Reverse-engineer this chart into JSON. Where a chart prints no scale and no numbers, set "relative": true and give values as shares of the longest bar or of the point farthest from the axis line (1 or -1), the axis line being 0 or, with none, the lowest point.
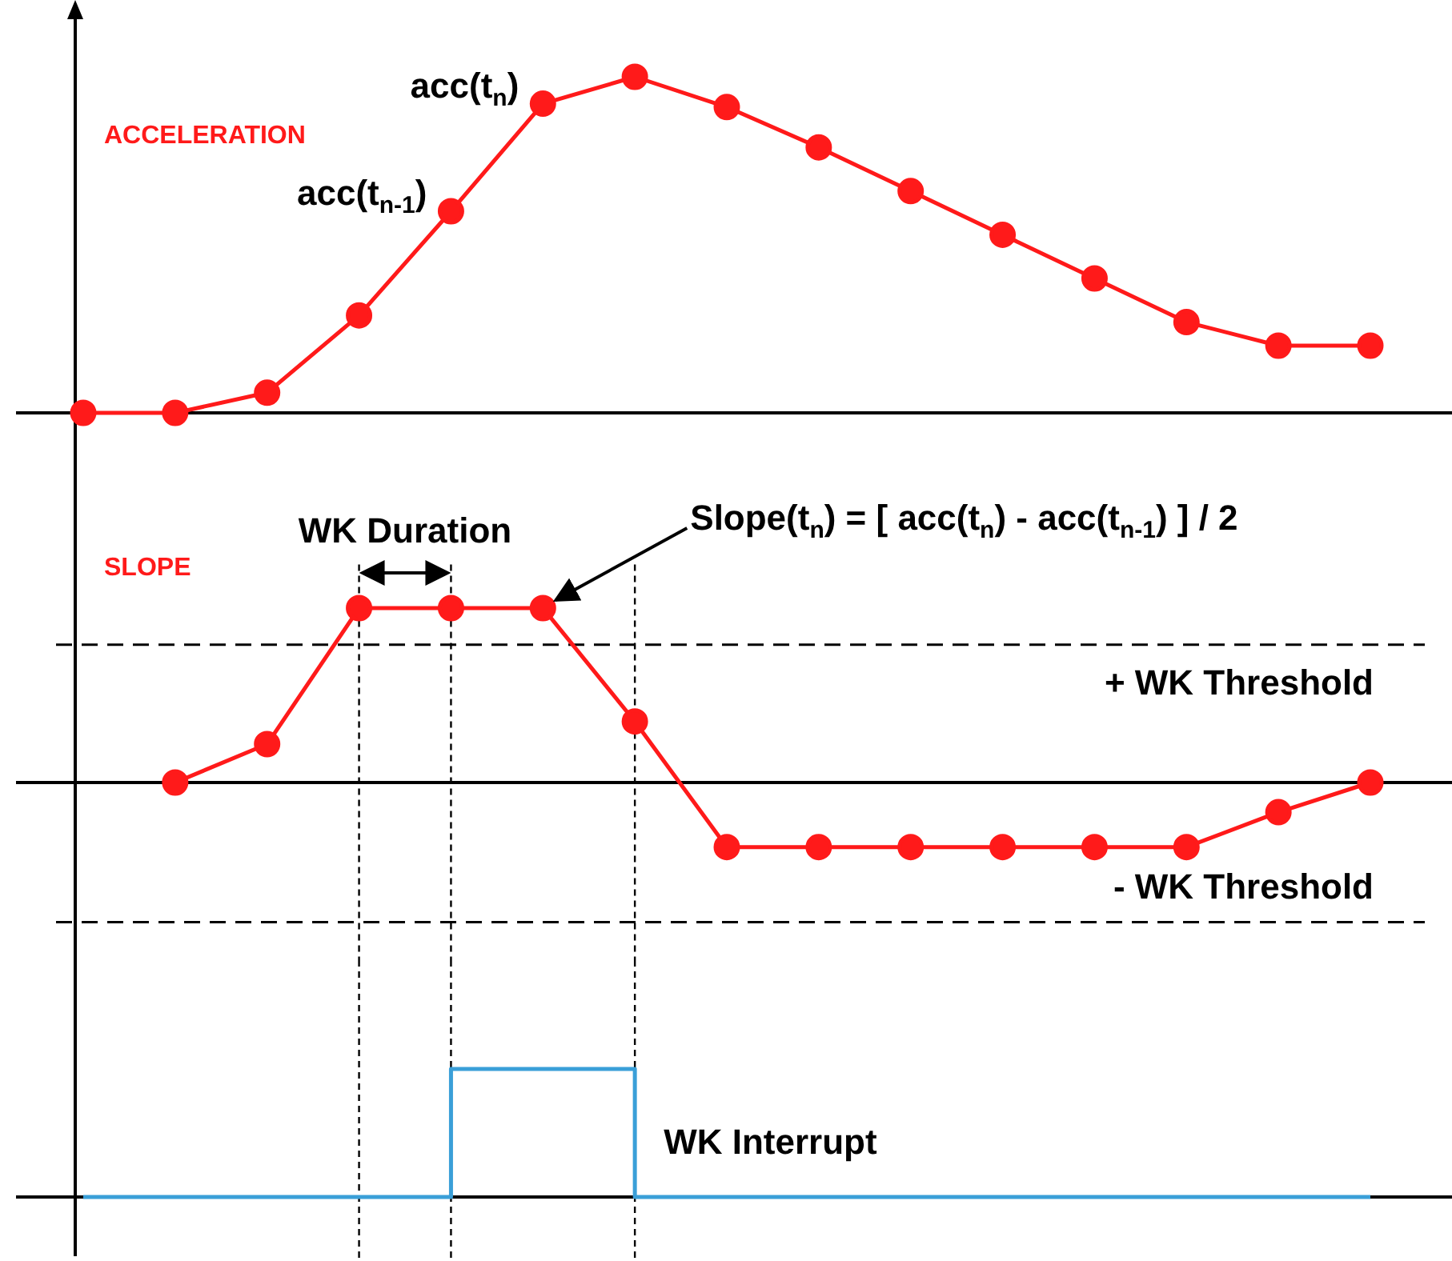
{
  "chart_data": [
    {
      "type": "line",
      "title": "ACCELERATION",
      "relative": true,
      "categories": [
        null,
        null,
        null,
        null,
        null,
        null,
        null,
        null,
        null,
        null,
        null,
        null,
        null,
        null,
        null
      ],
      "marker": "circle",
      "series": [
        {
          "color": "#ff1a1a",
          "values": [
            0,
            0,
            0.06,
            0.29,
            0.6,
            0.92,
            1,
            0.91,
            0.79,
            0.66,
            0.53,
            0.4,
            0.27,
            0.2,
            0.2
          ]
        }
      ],
      "annotations": [
        "acc(t$_{n}$)",
        "acc(t$_{n-1}$)"
      ]
    },
    {
      "type": "line",
      "title": "SLOPE",
      "relative": true,
      "grid": "x",
      "categories": [
        null,
        null,
        null,
        null,
        null,
        null,
        null,
        null,
        null,
        null,
        null,
        null,
        null,
        null,
        null
      ],
      "marker": "circle",
      "series": [
        {
          "color": "#ff1a1a",
          "values": [
            null,
            0,
            0.22,
            1,
            1,
            1,
            0.35,
            -0.37,
            -0.37,
            -0.37,
            -0.37,
            -0.37,
            -0.37,
            -0.17,
            0
          ]
        }
      ],
      "ref_lines": [
        {
          "axis": "y",
          "value": 0.79,
          "label": "+ WK Threshold",
          "line_style": "dashed"
        },
        {
          "axis": "y",
          "value": -0.8,
          "label": "- WK Threshold",
          "line_style": "dashed"
        }
      ],
      "annotations": [
        "Slope(t$_{n}$) = [ acc(t$_{n}$) - acc(t$_{n-1}$) ] / 2",
        "WK Duration"
      ]
    },
    {
      "type": "step",
      "relative": true,
      "grid": "x",
      "categories": [
        null,
        null,
        null,
        null,
        null,
        null,
        null,
        null,
        null,
        null,
        null,
        null,
        null,
        null,
        null
      ],
      "marker": "none",
      "series": [
        {
          "color": "#3a9fd8",
          "values": [
            0,
            0,
            0,
            0,
            1,
            1,
            0,
            0,
            0,
            0,
            0,
            0,
            0,
            0,
            0
          ]
        }
      ],
      "annotations": [
        "WK Interrupt"
      ]
    }
  ]
}
